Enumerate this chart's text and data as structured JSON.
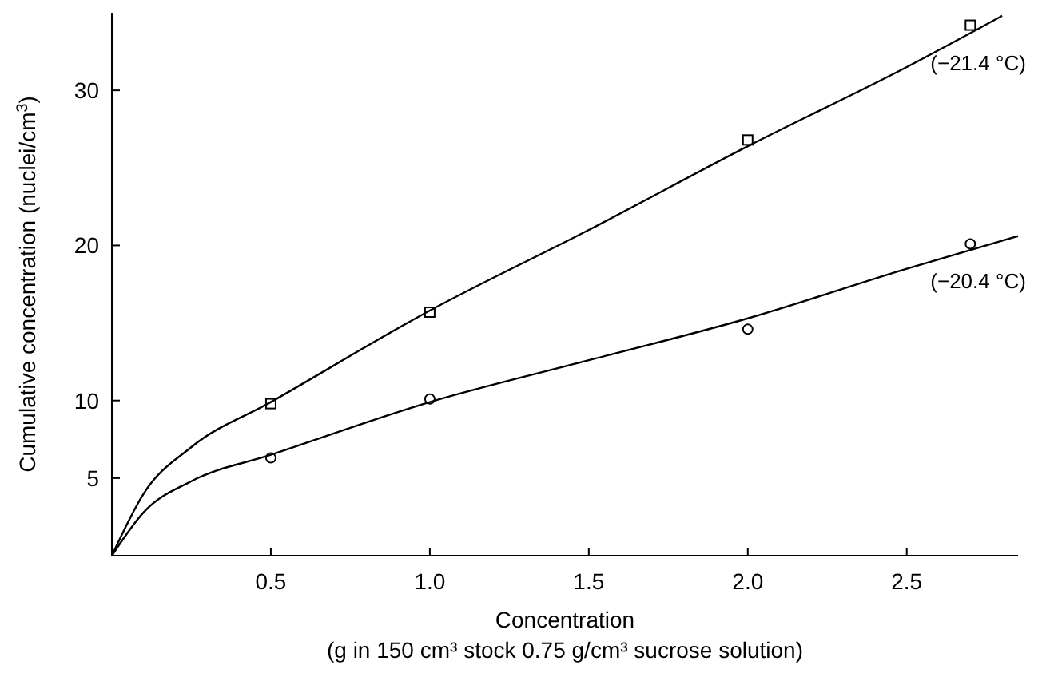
{
  "chart_data": {
    "type": "scatter",
    "xlabel": "Concentration\n(g in 150 cm³ stock 0.75 g/cm³ sucrose solution)",
    "ylabel": "Cumulative concentration (nuclei/cm$^{3}$)",
    "xlim": [
      0,
      2.85
    ],
    "ylim": [
      0,
      35
    ],
    "xticks": [
      {
        "value": 0.5,
        "label": "0.5"
      },
      {
        "value": 1,
        "label": "1.0"
      },
      {
        "value": 1.5,
        "label": "1.5"
      },
      {
        "value": 2,
        "label": "2.0"
      },
      {
        "value": 2.5,
        "label": "2.5"
      }
    ],
    "yticks": [
      5,
      10,
      20,
      30
    ],
    "grid": false,
    "series": [
      {
        "marker": "square",
        "color": "#000000",
        "x": [
          0.5,
          1,
          2,
          2.7
        ],
        "values": [
          9.8,
          15.7,
          26.8,
          34.2
        ]
      },
      {
        "marker": "circle",
        "color": "#000000",
        "x": [
          0.5,
          1,
          2,
          2.7
        ],
        "values": [
          6.3,
          10.1,
          14.6,
          20.1
        ]
      },
      {
        "type": "line",
        "marker": "none",
        "line_style": "solid",
        "color": "#000000",
        "x": [
          0,
          0.1,
          0.25,
          0.5,
          1,
          1.5,
          2,
          2.5,
          2.8
        ],
        "values": [
          0,
          4,
          7,
          9.9,
          15.8,
          21,
          26.4,
          31.5,
          34.8
        ]
      },
      {
        "type": "line",
        "marker": "none",
        "line_style": "solid",
        "color": "#000000",
        "x": [
          0,
          0.1,
          0.25,
          0.5,
          1,
          1.5,
          2,
          2.5,
          2.85
        ],
        "values": [
          0,
          2.8,
          4.8,
          6.5,
          9.9,
          12.6,
          15.3,
          18.5,
          20.6
        ]
      }
    ],
    "annotations": [
      "(−21.4 °C)",
      "(−20.4 °C)"
    ]
  }
}
